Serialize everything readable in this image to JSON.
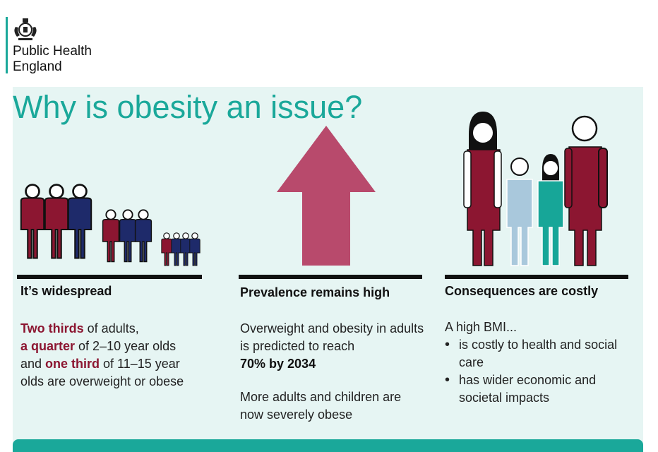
{
  "org": {
    "line1": "Public Health",
    "line2": "England"
  },
  "title": "Why is obesity an issue?",
  "columns": [
    {
      "heading": "It’s widespread",
      "lines": [
        {
          "highlight": "Two thirds",
          "text": " of adults,"
        },
        {
          "highlight": "a quarter",
          "text": " of 2–10 year olds"
        },
        {
          "pre": "and ",
          "highlight": "one third",
          "text": " of 11–15 year"
        },
        {
          "text": "olds are overweight or obese"
        }
      ]
    },
    {
      "heading": "Prevalence remains high",
      "para1": "Overweight and obesity in adults is predicted to reach",
      "para1_strong": "70% by 2034",
      "para2": "More adults and children are now severely obese"
    },
    {
      "heading": "Consequences are costly",
      "intro": "A high BMI...",
      "bullets": [
        "is costly to health and social care",
        "has wider economic and societal impacts"
      ]
    }
  ],
  "colors": {
    "teal": "#1aa89a",
    "panel": "#e6f5f3",
    "maroon": "#8c1631",
    "navy": "#1e2a6a",
    "arrow": "#b84a6c",
    "light_blue": "#a9c8dc",
    "green": "#17a698"
  },
  "icons": [
    "royal-crest-icon",
    "people-group-icon",
    "up-arrow-icon",
    "family-icon"
  ]
}
